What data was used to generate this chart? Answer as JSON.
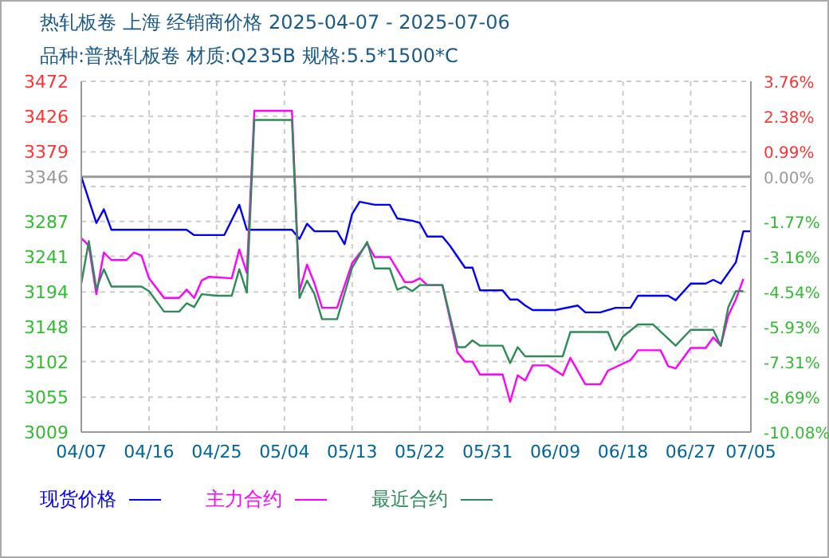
{
  "chart_data": {
    "type": "line",
    "title": "热轧板卷 上海 经销商价格 2025-04-07 - 2025-07-06",
    "subtitle": "品种:普热轧板卷 材质:Q235B 规格:5.5*1500*C",
    "series": [
      {
        "name": "现货价格",
        "color": "#0000ff",
        "x": [
          "2025-04-07",
          "2025-04-09",
          "2025-04-10",
          "2025-04-11",
          "2025-04-21",
          "2025-04-22",
          "2025-04-26",
          "2025-04-28",
          "2025-04-29",
          "2025-05-05",
          "2025-05-06",
          "2025-05-07",
          "2025-05-08",
          "2025-05-11",
          "2025-05-12",
          "2025-05-13",
          "2025-05-14",
          "2025-05-16",
          "2025-05-18",
          "2025-05-19",
          "2025-05-21",
          "2025-05-22",
          "2025-05-23",
          "2025-05-25",
          "2025-05-26",
          "2025-05-28",
          "2025-05-29",
          "2025-05-30",
          "2025-06-02",
          "2025-06-03",
          "2025-06-04",
          "2025-06-05",
          "2025-06-06",
          "2025-06-09",
          "2025-06-12",
          "2025-06-13",
          "2025-06-15",
          "2025-06-17",
          "2025-06-19",
          "2025-06-20",
          "2025-06-24",
          "2025-06-25",
          "2025-06-27",
          "2025-06-29",
          "2025-06-30",
          "2025-07-01",
          "2025-07-03",
          "2025-07-04",
          "2025-07-05"
        ],
        "values": [
          3346,
          3285,
          3303,
          3276,
          3276,
          3269,
          3269,
          3309,
          3276,
          3276,
          3264,
          3284,
          3274,
          3274,
          3257,
          3297,
          3313,
          3309,
          3309,
          3291,
          3288,
          3285,
          3267,
          3267,
          3255,
          3226,
          3226,
          3196,
          3196,
          3184,
          3184,
          3176,
          3170,
          3170,
          3176,
          3167,
          3167,
          3173,
          3173,
          3189,
          3189,
          3183,
          3205,
          3205,
          3210,
          3205,
          3233,
          3274,
          3274
        ]
      },
      {
        "name": "主力合约",
        "color": "#ff00ff",
        "x": [
          "2025-04-07",
          "2025-04-08",
          "2025-04-09",
          "2025-04-10",
          "2025-04-11",
          "2025-04-13",
          "2025-04-14",
          "2025-04-15",
          "2025-04-16",
          "2025-04-18",
          "2025-04-20",
          "2025-04-21",
          "2025-04-22",
          "2025-04-23",
          "2025-04-24",
          "2025-04-27",
          "2025-04-28",
          "2025-04-29",
          "2025-04-30",
          "2025-05-05",
          "2025-05-06",
          "2025-05-07",
          "2025-05-08",
          "2025-05-09",
          "2025-05-11",
          "2025-05-13",
          "2025-05-15",
          "2025-05-16",
          "2025-05-18",
          "2025-05-20",
          "2025-05-21",
          "2025-05-22",
          "2025-05-23",
          "2025-05-25",
          "2025-05-27",
          "2025-05-28",
          "2025-05-29",
          "2025-05-30",
          "2025-06-02",
          "2025-06-03",
          "2025-06-04",
          "2025-06-05",
          "2025-06-06",
          "2025-06-08",
          "2025-06-10",
          "2025-06-11",
          "2025-06-13",
          "2025-06-15",
          "2025-06-16",
          "2025-06-19",
          "2025-06-20",
          "2025-06-23",
          "2025-06-24",
          "2025-06-25",
          "2025-06-27",
          "2025-06-29",
          "2025-06-30",
          "2025-07-01",
          "2025-07-02",
          "2025-07-03",
          "2025-07-04"
        ],
        "values": [
          3265,
          3255,
          3191,
          3246,
          3236,
          3236,
          3246,
          3242,
          3212,
          3186,
          3186,
          3197,
          3186,
          3209,
          3214,
          3212,
          3250,
          3219,
          3433,
          3433,
          3195,
          3230,
          3205,
          3173,
          3173,
          3232,
          3258,
          3240,
          3240,
          3207,
          3207,
          3212,
          3203,
          3203,
          3114,
          3102,
          3102,
          3085,
          3085,
          3049,
          3084,
          3077,
          3097,
          3097,
          3084,
          3107,
          3072,
          3072,
          3090,
          3104,
          3117,
          3117,
          3096,
          3093,
          3120,
          3120,
          3134,
          3123,
          3163,
          3184,
          3211
        ]
      },
      {
        "name": "最近合约",
        "color": "#2e8b57",
        "x": [
          "2025-04-07",
          "2025-04-08",
          "2025-04-09",
          "2025-04-10",
          "2025-04-11",
          "2025-04-15",
          "2025-04-16",
          "2025-04-18",
          "2025-04-20",
          "2025-04-21",
          "2025-04-22",
          "2025-04-23",
          "2025-04-25",
          "2025-04-27",
          "2025-04-28",
          "2025-04-29",
          "2025-04-30",
          "2025-05-05",
          "2025-05-06",
          "2025-05-07",
          "2025-05-08",
          "2025-05-09",
          "2025-05-11",
          "2025-05-13",
          "2025-05-15",
          "2025-05-16",
          "2025-05-18",
          "2025-05-19",
          "2025-05-20",
          "2025-05-21",
          "2025-05-22",
          "2025-05-25",
          "2025-05-27",
          "2025-05-28",
          "2025-05-29",
          "2025-05-30",
          "2025-06-02",
          "2025-06-03",
          "2025-06-04",
          "2025-06-05",
          "2025-06-10",
          "2025-06-11",
          "2025-06-16",
          "2025-06-17",
          "2025-06-18",
          "2025-06-20",
          "2025-06-22",
          "2025-06-25",
          "2025-06-27",
          "2025-06-30",
          "2025-07-01",
          "2025-07-02",
          "2025-07-03",
          "2025-07-04"
        ],
        "values": [
          3205,
          3261,
          3198,
          3224,
          3201,
          3201,
          3195,
          3168,
          3168,
          3179,
          3174,
          3191,
          3189,
          3189,
          3224,
          3193,
          3421,
          3421,
          3186,
          3209,
          3191,
          3158,
          3158,
          3226,
          3260,
          3225,
          3225,
          3197,
          3201,
          3195,
          3203,
          3203,
          3121,
          3121,
          3130,
          3123,
          3123,
          3100,
          3121,
          3109,
          3109,
          3141,
          3141,
          3117,
          3135,
          3151,
          3151,
          3123,
          3144,
          3144,
          3123,
          3174,
          3195,
          3195
        ]
      }
    ],
    "xlim": [
      "2025-04-07",
      "2025-07-05"
    ],
    "xticks": [
      {
        "value": "2025-04-07",
        "label": "04/07"
      },
      {
        "value": "2025-04-16",
        "label": "04/16"
      },
      {
        "value": "2025-04-25",
        "label": "04/25"
      },
      {
        "value": "2025-05-04",
        "label": "05/04"
      },
      {
        "value": "2025-05-13",
        "label": "05/13"
      },
      {
        "value": "2025-05-22",
        "label": "05/22"
      },
      {
        "value": "2025-05-31",
        "label": "05/31"
      },
      {
        "value": "2025-06-09",
        "label": "06/09"
      },
      {
        "value": "2025-06-18",
        "label": "06/18"
      },
      {
        "value": "2025-06-27",
        "label": "06/27"
      },
      {
        "value": "2025-07-05",
        "label": "07/05"
      }
    ],
    "ylim": [
      3009,
      3472
    ],
    "yticks": [
      3009,
      3055,
      3102,
      3148,
      3194,
      3241,
      3287,
      {
        "value": 3333,
        "label": null
      },
      3346,
      3379,
      3426,
      3472
    ],
    "y2lim": [
      -10.08,
      3.76
    ],
    "y2ticks": [
      {
        "value": -10.08,
        "label": "-10.08%"
      },
      {
        "value": -8.69,
        "label": "-8.69%"
      },
      {
        "value": -7.31,
        "label": "-7.31%"
      },
      {
        "value": -5.93,
        "label": "-5.93%"
      },
      {
        "value": -4.54,
        "label": "-4.54%"
      },
      {
        "value": -3.16,
        "label": "-3.16%"
      },
      {
        "value": -1.77,
        "label": "-1.77%"
      },
      {
        "value": 0,
        "label": "0.00%"
      },
      {
        "value": 0.99,
        "label": "0.99%"
      },
      {
        "value": 2.38,
        "label": "2.38%"
      },
      {
        "value": 3.76,
        "label": "3.76%"
      }
    ],
    "ref_lines": [
      {
        "axis": "y",
        "value": 3346,
        "color": "#999999"
      }
    ],
    "grid": true,
    "legend": "bottom",
    "marker": "none",
    "line_style": "solid"
  }
}
